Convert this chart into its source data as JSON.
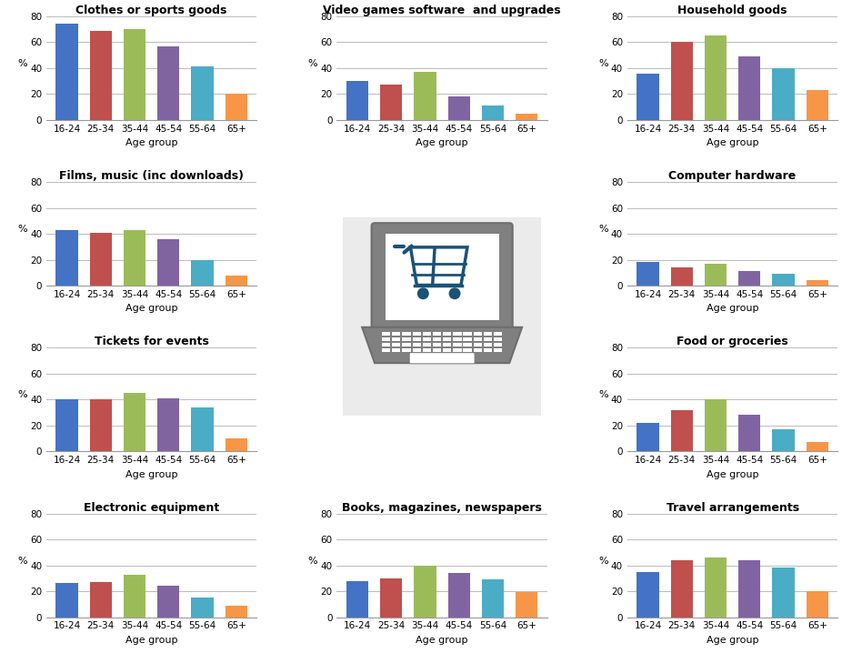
{
  "categories": [
    "16-24",
    "25-34",
    "35-44",
    "45-54",
    "55-64",
    "65+"
  ],
  "bar_colors": [
    "#4472c4",
    "#c0504d",
    "#9bbb59",
    "#8064a2",
    "#4bacc6",
    "#f79646"
  ],
  "charts": [
    {
      "title": "Clothes or sports goods",
      "values": [
        74,
        69,
        70,
        57,
        41,
        20
      ],
      "row": 0,
      "col": 0
    },
    {
      "title": "Video games software  and upgrades",
      "values": [
        30,
        27,
        37,
        18,
        11,
        5
      ],
      "row": 0,
      "col": 1
    },
    {
      "title": "Household goods",
      "values": [
        36,
        60,
        65,
        49,
        40,
        23
      ],
      "row": 0,
      "col": 2
    },
    {
      "title": "Films, music (inc downloads)",
      "values": [
        43,
        41,
        43,
        36,
        20,
        8
      ],
      "row": 1,
      "col": 0
    },
    {
      "title": "Computer hardware",
      "values": [
        18,
        14,
        17,
        11,
        9,
        4
      ],
      "row": 1,
      "col": 2
    },
    {
      "title": "Tickets for events",
      "values": [
        40,
        40,
        45,
        41,
        34,
        10
      ],
      "row": 2,
      "col": 0
    },
    {
      "title": "Food or groceries",
      "values": [
        22,
        32,
        40,
        28,
        17,
        7
      ],
      "row": 2,
      "col": 2
    },
    {
      "title": "Electronic equipment",
      "values": [
        26,
        27,
        33,
        24,
        15,
        9
      ],
      "row": 3,
      "col": 0
    },
    {
      "title": "Books, magazines, newspapers",
      "values": [
        28,
        30,
        40,
        34,
        29,
        19
      ],
      "row": 3,
      "col": 1
    },
    {
      "title": "Travel arrangements",
      "values": [
        35,
        44,
        46,
        44,
        38,
        20
      ],
      "row": 3,
      "col": 2
    }
  ],
  "ylabel": "%",
  "xlabel": "Age group",
  "ylim": [
    0,
    80
  ],
  "yticks": [
    0,
    20,
    40,
    60,
    80
  ],
  "background_color": "#ffffff",
  "img_bg_color": "#ebebeb",
  "laptop_body_color": "#808080",
  "laptop_screen_color": "#ffffff",
  "laptop_frame_color": "#6e6e6e",
  "cart_color": "#1a5276",
  "keyboard_color": "#888888",
  "title_fontsize": 9,
  "tick_fontsize": 7.5,
  "label_fontsize": 8
}
